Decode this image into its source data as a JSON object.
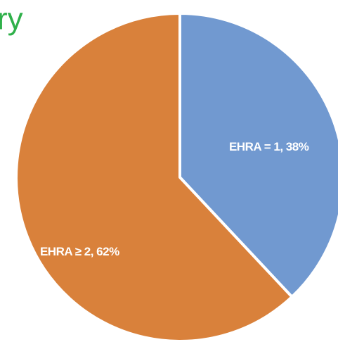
{
  "chart_data": {
    "type": "pie",
    "title": "ry",
    "categories": [
      "EHRA = 1",
      "EHRA ≥ 2"
    ],
    "values": [
      38,
      62
    ],
    "labels": [
      "EHRA = 1, 38%",
      "EHRA ≥ 2, 62%"
    ],
    "colors": [
      "#7199d0",
      "#d9813b"
    ]
  }
}
